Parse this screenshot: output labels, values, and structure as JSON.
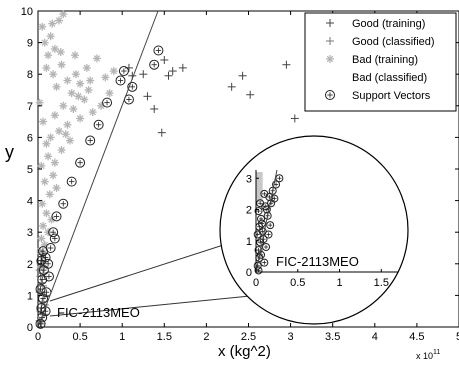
{
  "chart_data": {
    "type": "scatter",
    "xlabel": "x (kg^2)",
    "ylabel": "y",
    "x_multiplier": "x 10",
    "x_multiplier_exp": "11",
    "xlim": [
      0,
      5
    ],
    "ylim": [
      0,
      10
    ],
    "x_ticks": [
      "0",
      "0.5",
      "1",
      "1.5",
      "2",
      "2.5",
      "3",
      "3.5",
      "4",
      "4.5",
      "5"
    ],
    "y_ticks": [
      "0",
      "1",
      "2",
      "3",
      "4",
      "5",
      "6",
      "7",
      "8",
      "9",
      "10"
    ],
    "grid": false,
    "legend_position": "top-right",
    "legend": [
      {
        "label": "Good (training)",
        "marker": "plus",
        "color": "#444444"
      },
      {
        "label": "Good (classified)",
        "marker": "plus",
        "color": "#777777"
      },
      {
        "label": "Bad (training)",
        "marker": "asterisk",
        "color": "#b5b5b5"
      },
      {
        "label": "Bad (classified)",
        "marker": "none",
        "color": "#cccccc"
      },
      {
        "label": "Support Vectors",
        "marker": "circle",
        "color": "#222222"
      }
    ],
    "annotation": "FIC-2113MEO",
    "inset": {
      "xlim": [
        0,
        1.7
      ],
      "ylim": [
        0,
        3.2
      ],
      "x_ticks": [
        "0",
        "0.5",
        "1",
        "1.5"
      ],
      "y_ticks": [
        "0",
        "1",
        "2",
        "3"
      ],
      "annotation": "FIC-2113MEO"
    },
    "series": [
      {
        "name": "Good (training)",
        "marker": "plus",
        "points": [
          [
            1.08,
            8.2
          ],
          [
            1.12,
            7.95
          ],
          [
            1.25,
            8.0
          ],
          [
            1.3,
            7.3
          ],
          [
            1.38,
            6.9
          ],
          [
            1.5,
            8.45
          ],
          [
            1.55,
            7.95
          ],
          [
            1.6,
            8.1
          ],
          [
            1.72,
            8.2
          ],
          [
            1.47,
            6.15
          ],
          [
            2.3,
            7.6
          ],
          [
            2.43,
            7.95
          ],
          [
            2.52,
            7.35
          ],
          [
            2.95,
            8.3
          ],
          [
            3.05,
            6.6
          ]
        ]
      },
      {
        "name": "Bad (training)",
        "marker": "asterisk",
        "points": [
          [
            0.05,
            9.5
          ],
          [
            0.08,
            9.0
          ],
          [
            0.12,
            8.6
          ],
          [
            0.15,
            9.2
          ],
          [
            0.2,
            8.8
          ],
          [
            0.25,
            9.7
          ],
          [
            0.3,
            9.9
          ],
          [
            0.1,
            8.2
          ],
          [
            0.18,
            8.0
          ],
          [
            0.22,
            7.6
          ],
          [
            0.28,
            8.3
          ],
          [
            0.35,
            7.8
          ],
          [
            0.4,
            7.4
          ],
          [
            0.45,
            8.0
          ],
          [
            0.5,
            7.7
          ],
          [
            0.55,
            7.2
          ],
          [
            0.6,
            7.5
          ],
          [
            0.7,
            8.5
          ],
          [
            0.8,
            7.9
          ],
          [
            0.9,
            8.1
          ],
          [
            0.65,
            6.8
          ],
          [
            0.75,
            7.0
          ],
          [
            0.5,
            6.6
          ],
          [
            0.42,
            6.9
          ],
          [
            0.35,
            6.4
          ],
          [
            0.3,
            7.0
          ],
          [
            0.25,
            6.2
          ],
          [
            0.2,
            6.7
          ],
          [
            0.15,
            6.0
          ],
          [
            0.1,
            5.8
          ],
          [
            0.12,
            5.4
          ],
          [
            0.2,
            5.2
          ],
          [
            0.28,
            5.6
          ],
          [
            0.38,
            5.9
          ],
          [
            0.18,
            4.8
          ],
          [
            0.08,
            4.6
          ],
          [
            0.14,
            4.2
          ],
          [
            0.22,
            4.4
          ],
          [
            0.05,
            3.9
          ],
          [
            0.1,
            3.6
          ],
          [
            0.16,
            3.4
          ],
          [
            0.06,
            3.2
          ],
          [
            0.12,
            3.0
          ],
          [
            0.04,
            2.8
          ],
          [
            0.08,
            2.6
          ],
          [
            0.03,
            2.4
          ],
          [
            0.06,
            2.2
          ],
          [
            0.04,
            1.9
          ],
          [
            0.33,
            6.1
          ],
          [
            0.48,
            7.3
          ],
          [
            0.02,
            7.1
          ],
          [
            0.06,
            6.5
          ],
          [
            0.04,
            5.1
          ],
          [
            0.85,
            7.4
          ],
          [
            0.58,
            8.2
          ],
          [
            0.27,
            8.7
          ],
          [
            0.17,
            9.6
          ],
          [
            0.44,
            8.6
          ],
          [
            0.62,
            7.8
          ]
        ]
      },
      {
        "name": "Good (classified)",
        "marker": "plus",
        "points": [
          [
            0.02,
            0.2
          ],
          [
            0.03,
            0.5
          ],
          [
            0.05,
            0.8
          ],
          [
            0.02,
            1.1
          ],
          [
            0.04,
            1.4
          ],
          [
            0.06,
            1.7
          ],
          [
            0.03,
            2.0
          ],
          [
            0.05,
            2.3
          ],
          [
            0.07,
            0.4
          ],
          [
            0.08,
            1.0
          ],
          [
            0.04,
            0.1
          ],
          [
            0.06,
            1.3
          ],
          [
            0.02,
            1.8
          ],
          [
            0.08,
            0.7
          ],
          [
            0.05,
            2.1
          ],
          [
            0.03,
            1.6
          ],
          [
            0.07,
            1.9
          ],
          [
            0.04,
            0.6
          ]
        ]
      },
      {
        "name": "Support Vectors",
        "marker": "circle",
        "points": [
          [
            0.03,
            0.1
          ],
          [
            0.05,
            0.3
          ],
          [
            0.04,
            0.6
          ],
          [
            0.06,
            0.9
          ],
          [
            0.03,
            1.2
          ],
          [
            0.05,
            1.5
          ],
          [
            0.07,
            1.8
          ],
          [
            0.04,
            2.1
          ],
          [
            0.06,
            2.4
          ],
          [
            0.09,
            0.5
          ],
          [
            0.1,
            1.1
          ],
          [
            0.12,
            2.0
          ],
          [
            0.15,
            2.5
          ],
          [
            0.18,
            3.0
          ],
          [
            0.22,
            3.5
          ],
          [
            0.3,
            3.9
          ],
          [
            0.4,
            4.6
          ],
          [
            0.5,
            5.2
          ],
          [
            0.62,
            5.9
          ],
          [
            0.72,
            6.4
          ],
          [
            0.82,
            7.1
          ],
          [
            0.98,
            7.8
          ],
          [
            1.02,
            8.1
          ],
          [
            1.12,
            7.6
          ],
          [
            1.08,
            7.2
          ],
          [
            1.43,
            8.75
          ],
          [
            1.38,
            8.3
          ],
          [
            0.09,
            2.2
          ],
          [
            0.13,
            1.6
          ],
          [
            0.2,
            2.8
          ]
        ]
      }
    ],
    "inset_points": [
      [
        0.02,
        0.2
      ],
      [
        0.04,
        0.45
      ],
      [
        0.03,
        0.7
      ],
      [
        0.05,
        0.95
      ],
      [
        0.02,
        1.2
      ],
      [
        0.04,
        1.45
      ],
      [
        0.06,
        1.7
      ],
      [
        0.03,
        1.95
      ],
      [
        0.05,
        2.2
      ],
      [
        0.1,
        0.3
      ],
      [
        0.12,
        0.8
      ],
      [
        0.08,
        1.3
      ],
      [
        0.14,
        1.8
      ],
      [
        0.11,
        2.1
      ],
      [
        0.16,
        2.4
      ],
      [
        0.2,
        2.6
      ],
      [
        0.24,
        2.8
      ],
      [
        0.28,
        3.0
      ],
      [
        0.06,
        0.55
      ],
      [
        0.09,
        1.05
      ],
      [
        0.07,
        1.55
      ],
      [
        0.13,
        2.0
      ],
      [
        0.1,
        2.5
      ],
      [
        0.18,
        2.2
      ],
      [
        0.03,
        0.05
      ],
      [
        0.15,
        1.2
      ],
      [
        0.17,
        1.5
      ],
      [
        0.22,
        2.35
      ]
    ]
  }
}
